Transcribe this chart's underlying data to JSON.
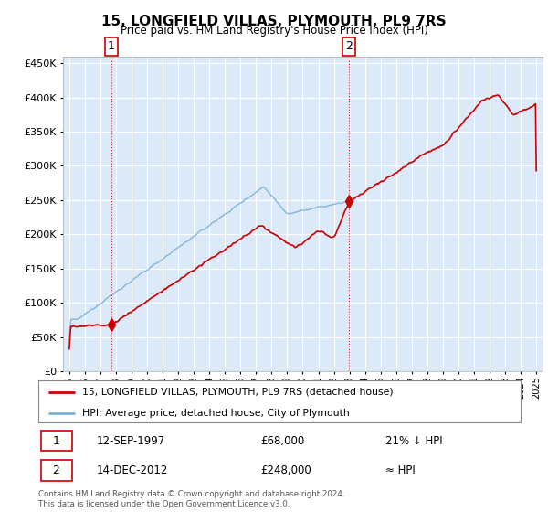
{
  "title": "15, LONGFIELD VILLAS, PLYMOUTH, PL9 7RS",
  "subtitle": "Price paid vs. HM Land Registry's House Price Index (HPI)",
  "plot_bg_color": "#dce9f8",
  "grid_color": "#ffffff",
  "legend_entries": [
    "15, LONGFIELD VILLAS, PLYMOUTH, PL9 7RS (detached house)",
    "HPI: Average price, detached house, City of Plymouth"
  ],
  "sale1_date": "12-SEP-1997",
  "sale1_price": 68000,
  "sale1_label": "21% ↓ HPI",
  "sale2_date": "14-DEC-2012",
  "sale2_price": 248000,
  "sale2_label": "≈ HPI",
  "footnote": "Contains HM Land Registry data © Crown copyright and database right 2024.\nThis data is licensed under the Open Government Licence v3.0.",
  "sale1_x": 1997.7,
  "sale2_x": 2012.95,
  "ylim_min": 0,
  "ylim_max": 460000,
  "red_line_color": "#cc0000",
  "blue_line_color": "#7ab0d8"
}
